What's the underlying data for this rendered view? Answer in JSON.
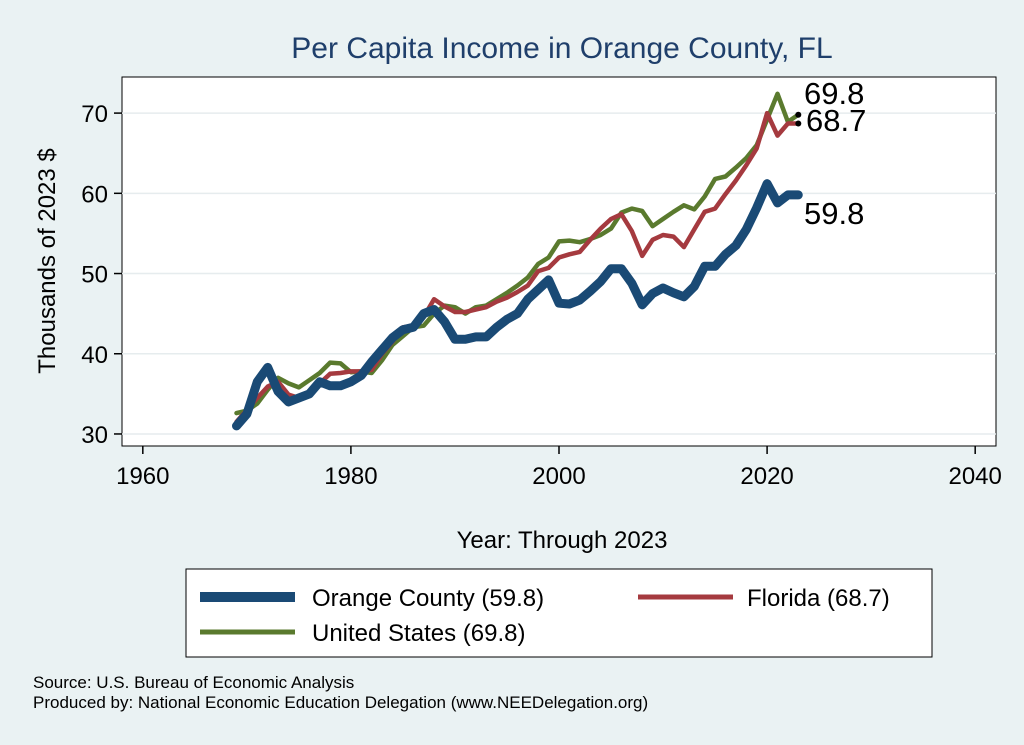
{
  "chart_data": {
    "type": "line",
    "title": "Per Capita Income in Orange County, FL",
    "xlabel": "Year: Through 2023",
    "ylabel": "Thousands of 2023 $",
    "xlim": [
      1958,
      2042
    ],
    "ylim": [
      28.5,
      74.5
    ],
    "xticks": [
      1960,
      1980,
      2000,
      2020,
      2040
    ],
    "yticks": [
      30,
      40,
      50,
      60,
      70
    ],
    "grid": true,
    "legend_position": "bottom",
    "series": [
      {
        "name": "Orange County (59.8)",
        "color": "#1a4a75",
        "end_label": "59.8",
        "x": [
          1969,
          1970,
          1971,
          1972,
          1973,
          1974,
          1975,
          1976,
          1977,
          1978,
          1979,
          1980,
          1981,
          1982,
          1983,
          1984,
          1985,
          1986,
          1987,
          1988,
          1989,
          1990,
          1991,
          1992,
          1993,
          1994,
          1995,
          1996,
          1997,
          1998,
          1999,
          2000,
          2001,
          2002,
          2003,
          2004,
          2005,
          2006,
          2007,
          2008,
          2009,
          2010,
          2011,
          2012,
          2013,
          2014,
          2015,
          2016,
          2017,
          2018,
          2019,
          2020,
          2021,
          2022,
          2023
        ],
        "y": [
          31.0,
          32.5,
          36.5,
          38.3,
          35.3,
          34.0,
          34.5,
          35.0,
          36.5,
          36.0,
          36.0,
          36.5,
          37.3,
          39.0,
          40.5,
          42.0,
          43.0,
          43.3,
          45.0,
          45.5,
          44.0,
          41.8,
          41.8,
          42.1,
          42.1,
          43.3,
          44.3,
          45.0,
          46.8,
          48.0,
          49.2,
          46.3,
          46.2,
          46.7,
          47.8,
          49.0,
          50.6,
          50.6,
          48.8,
          46.1,
          47.5,
          48.2,
          47.6,
          47.1,
          48.4,
          50.9,
          50.9,
          52.4,
          53.5,
          55.5,
          58.2,
          61.2,
          58.8,
          59.8,
          59.8
        ]
      },
      {
        "name": "Florida (68.7)",
        "color": "#a53a3f",
        "end_label": "68.7",
        "x": [
          1969,
          1970,
          1971,
          1972,
          1973,
          1974,
          1975,
          1976,
          1977,
          1978,
          1979,
          1980,
          1981,
          1982,
          1983,
          1984,
          1985,
          1986,
          1987,
          1988,
          1989,
          1990,
          1991,
          1992,
          1993,
          1994,
          1995,
          1996,
          1997,
          1998,
          1999,
          2000,
          2001,
          2002,
          2003,
          2004,
          2005,
          2006,
          2007,
          2008,
          2009,
          2010,
          2011,
          2012,
          2013,
          2014,
          2015,
          2016,
          2017,
          2018,
          2019,
          2020,
          2021,
          2022,
          2023
        ],
        "y": [
          31.5,
          33.0,
          34.5,
          35.9,
          36.5,
          34.9,
          34.5,
          35.2,
          36.3,
          37.5,
          37.6,
          37.8,
          37.8,
          38.0,
          40.0,
          41.5,
          43.3,
          43.5,
          44.6,
          46.8,
          45.9,
          45.2,
          45.2,
          45.5,
          45.8,
          46.5,
          47.0,
          47.7,
          48.5,
          50.3,
          50.7,
          52.0,
          52.4,
          52.7,
          54.2,
          55.6,
          56.8,
          57.4,
          55.3,
          52.2,
          54.2,
          54.8,
          54.6,
          53.3,
          55.5,
          57.7,
          58.1,
          59.9,
          61.6,
          63.5,
          65.6,
          70.0,
          67.2,
          68.7,
          68.7
        ]
      },
      {
        "name": "United States (69.8)",
        "color": "#5a7a2e",
        "end_label": "69.8",
        "x": [
          1969,
          1970,
          1971,
          1972,
          1973,
          1974,
          1975,
          1976,
          1977,
          1978,
          1979,
          1980,
          1981,
          1982,
          1983,
          1984,
          1985,
          1986,
          1987,
          1988,
          1989,
          1990,
          1991,
          1992,
          1993,
          1994,
          1995,
          1996,
          1997,
          1998,
          1999,
          2000,
          2001,
          2002,
          2003,
          2004,
          2005,
          2006,
          2007,
          2008,
          2009,
          2010,
          2011,
          2012,
          2013,
          2014,
          2015,
          2016,
          2017,
          2018,
          2019,
          2020,
          2021,
          2022,
          2023
        ],
        "y": [
          32.6,
          32.9,
          33.8,
          35.5,
          37.0,
          36.3,
          35.8,
          36.7,
          37.6,
          38.9,
          38.8,
          37.7,
          37.8,
          37.6,
          39.2,
          41.1,
          42.2,
          43.3,
          43.5,
          45.0,
          46.0,
          45.8,
          45.0,
          45.8,
          46.0,
          46.8,
          47.6,
          48.5,
          49.5,
          51.2,
          52.0,
          54.0,
          54.1,
          53.9,
          54.3,
          54.8,
          55.6,
          57.6,
          58.1,
          57.8,
          55.9,
          56.8,
          57.7,
          58.5,
          58.0,
          59.6,
          61.8,
          62.1,
          63.2,
          64.4,
          66.0,
          69.2,
          72.4,
          68.9,
          69.8
        ]
      }
    ]
  },
  "source_line": "Source: U.S. Bureau of Economic Analysis",
  "produced_line": "Produced by: National Economic Education Delegation (www.NEEDelegation.org)"
}
